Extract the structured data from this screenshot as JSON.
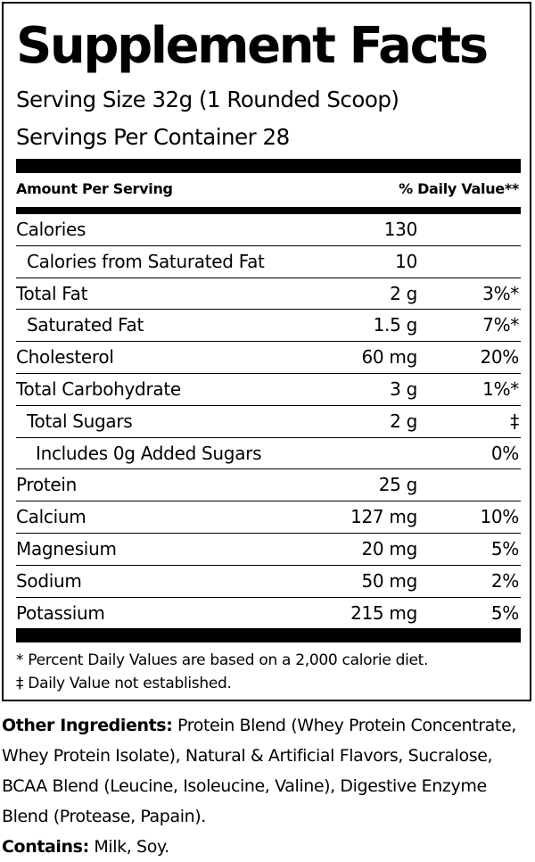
{
  "label": {
    "title": "Supplement Facts",
    "serving_size": "Serving Size 32g (1 Rounded Scoop)",
    "servings_per_container": "Servings Per Container  28",
    "header_left": "Amount Per Serving",
    "header_right": "% Daily Value**",
    "rows": [
      {
        "name": "Calories",
        "amount": "130",
        "dv": ""
      },
      {
        "name": "Calories from Saturated Fat",
        "amount": "10",
        "dv": ""
      },
      {
        "name": "Total Fat",
        "amount": "2 g",
        "dv": "3%*"
      },
      {
        "name": "Saturated Fat",
        "amount": "1.5 g",
        "dv": "7%*"
      },
      {
        "name": "Cholesterol",
        "amount": "60 mg",
        "dv": "20%"
      },
      {
        "name": "Total Carbohydrate",
        "amount": "3 g",
        "dv": "1%*"
      },
      {
        "name": "Total Sugars",
        "amount": "2 g",
        "dv": "‡"
      },
      {
        "name": "Includes 0g Added Sugars",
        "amount": "",
        "dv": "0%"
      },
      {
        "name": "Protein",
        "amount": "25 g",
        "dv": ""
      },
      {
        "name": "Calcium",
        "amount": "127 mg",
        "dv": "10%"
      },
      {
        "name": "Magnesium",
        "amount": "20 mg",
        "dv": "5%"
      },
      {
        "name": "Sodium",
        "amount": "50 mg",
        "dv": "2%"
      },
      {
        "name": "Potassium",
        "amount": "215 mg",
        "dv": "5%"
      }
    ],
    "footnote_1": "* Percent Daily Values are based on a 2,000 calorie diet.",
    "footnote_2": "‡ Daily Value not established."
  },
  "ingredients": {
    "label": "Other Ingredients:",
    "line_1": " Protein Blend (Whey Protein Concentrate,",
    "line_2": "Whey Protein Isolate), Natural & Artificial Flavors, Sucralose,",
    "line_3": "BCAA Blend (Leucine, Isoleucine, Valine), Digestive Enzyme",
    "line_4": "Blend (Protease, Papain).",
    "contains_label": "Contains:",
    "contains_value": " Milk, Soy."
  }
}
